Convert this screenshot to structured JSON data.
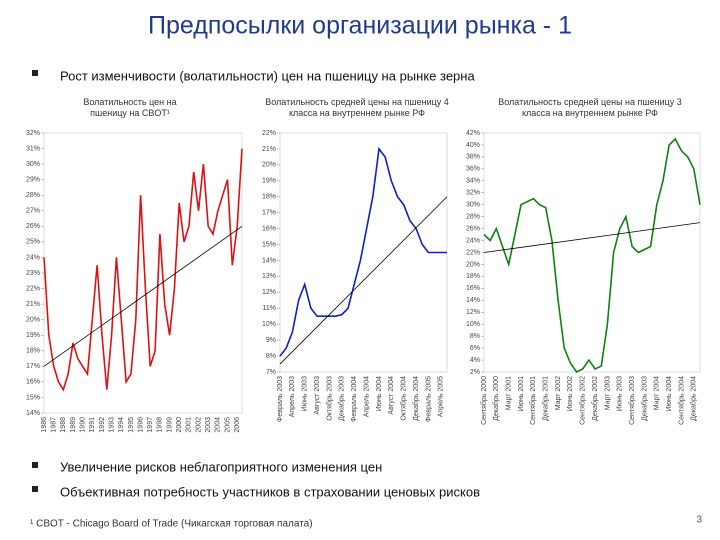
{
  "title": "Предпосылки организации рынка - 1",
  "bullets": [
    "Рост изменчивости (волатильности) цен на пшеницу на рынке зерна",
    "Увеличение рисков неблагоприятного изменения цен",
    "Объективная потребность участников в страховании ценовых рисков"
  ],
  "footnote": "¹ CBOT - Chicago Board of Trade (Чикагская торговая палата)",
  "page_number": "3",
  "chart_data": [
    {
      "type": "line",
      "title": "Волатильность цен на пшеницу на CBOT¹",
      "color": "#e01010",
      "trend": [
        17,
        26
      ],
      "trend_color": "#000000",
      "categories": [
        "1986",
        null,
        "1987",
        null,
        "1988",
        null,
        "1989",
        null,
        "1990",
        null,
        "1991",
        null,
        "1992",
        null,
        "1993",
        null,
        "1994",
        null,
        "1995",
        null,
        "1996",
        null,
        "1997",
        null,
        "1998",
        null,
        "1999",
        null,
        "2000",
        null,
        "2001",
        null,
        "2002",
        null,
        "2003",
        null,
        "2004",
        null,
        "2005",
        null,
        "2006",
        null
      ],
      "values": [
        24,
        19,
        17,
        16,
        15.5,
        16.5,
        18.5,
        17.5,
        17,
        16.5,
        20,
        23.5,
        19,
        15.5,
        19,
        24,
        20,
        16,
        16.5,
        20,
        28,
        22,
        17,
        18,
        25.5,
        21,
        19,
        22,
        27.5,
        25,
        26,
        29.5,
        27,
        30,
        26,
        25.5,
        27,
        28,
        29,
        23.5,
        26,
        31
      ],
      "ylim": [
        14,
        32
      ],
      "yticks": [
        {
          "value": 14,
          "label": "14%"
        },
        {
          "value": 15,
          "label": "15%"
        },
        {
          "value": 16,
          "label": "16%"
        },
        {
          "value": 17,
          "label": "17%"
        },
        {
          "value": 18,
          "label": "18%"
        },
        {
          "value": 19,
          "label": "19%"
        },
        {
          "value": 20,
          "label": "20%"
        },
        {
          "value": 21,
          "label": "21%"
        },
        {
          "value": 22,
          "label": "22%"
        },
        {
          "value": 23,
          "label": "23%"
        },
        {
          "value": 24,
          "label": "24%"
        },
        {
          "value": 25,
          "label": "25%"
        },
        {
          "value": 26,
          "label": "26%"
        },
        {
          "value": 27,
          "label": "27%"
        },
        {
          "value": 28,
          "label": "28%"
        },
        {
          "value": 29,
          "label": "29%"
        },
        {
          "value": 30,
          "label": "30%"
        },
        {
          "value": 31,
          "label": "31%"
        },
        {
          "value": 32,
          "label": "32%"
        }
      ]
    },
    {
      "type": "line",
      "title": "Волатильность средней цены на пшеницу 4 класса на внутреннем рынке РФ",
      "color": "#1020c0",
      "trend": [
        7.5,
        18
      ],
      "trend_color": "#000000",
      "categories": [
        "Февраль 2003",
        null,
        "Апрель 2003",
        null,
        "Июнь 2003",
        null,
        "Август 2003",
        null,
        "Октябрь 2003",
        null,
        "Декабрь 2003",
        null,
        "Февраль 2004",
        null,
        "Апрель 2004",
        null,
        "Июнь 2004",
        null,
        "Август 2004",
        null,
        "Октябрь 2004",
        null,
        "Декабрь 2004",
        null,
        "Февраль 2005",
        null,
        "Апрель 2005",
        null
      ],
      "values": [
        8,
        8.5,
        9.5,
        11.5,
        12.5,
        11,
        10.5,
        10.5,
        10.5,
        10.5,
        10.6,
        11,
        12.5,
        14,
        16,
        18,
        21,
        20.5,
        19,
        18,
        17.5,
        16.5,
        16,
        15,
        14.5,
        14.5,
        14.5,
        14.5
      ],
      "ylim": [
        7,
        22
      ],
      "yticks": [
        {
          "value": 7,
          "label": "7%"
        },
        {
          "value": 8,
          "label": "8%"
        },
        {
          "value": 9,
          "label": "9%"
        },
        {
          "value": 10,
          "label": "10%"
        },
        {
          "value": 11,
          "label": "11%"
        },
        {
          "value": 12,
          "label": "12%"
        },
        {
          "value": 13,
          "label": "13%"
        },
        {
          "value": 14,
          "label": "14%"
        },
        {
          "value": 15,
          "label": "15%"
        },
        {
          "value": 16,
          "label": "16%"
        },
        {
          "value": 17,
          "label": "17%"
        },
        {
          "value": 18,
          "label": "18%"
        },
        {
          "value": 19,
          "label": "19%"
        },
        {
          "value": 20,
          "label": "20%"
        },
        {
          "value": 21,
          "label": "21%"
        },
        {
          "value": 22,
          "label": "22%"
        }
      ]
    },
    {
      "type": "line",
      "title": "Волатильность средней цены на пшеницу 3 класса на внутреннем рынке РФ",
      "color": "#108010",
      "trend": [
        22,
        27
      ],
      "trend_color": "#000000",
      "categories": [
        "Сентябрь 2000",
        null,
        "Декабрь 2000",
        null,
        "Март 2001",
        null,
        "Июнь 2001",
        null,
        "Сентябрь 2001",
        null,
        "Декабрь 2001",
        null,
        "Март 2002",
        null,
        "Июнь 2002",
        null,
        "Сентябрь 2002",
        null,
        "Декабрь 2002",
        null,
        "Март 2003",
        null,
        "Июнь 2003",
        null,
        "Сентябрь 2003",
        null,
        "Декабрь 2003",
        null,
        "Март 2004",
        null,
        "Июнь 2004",
        null,
        "Сентябрь 2004",
        null,
        "Декабрь 2004",
        null
      ],
      "values": [
        25,
        24,
        26,
        23,
        20,
        25,
        30,
        30.5,
        31,
        30,
        29.5,
        24,
        14,
        6,
        3.5,
        2,
        2.5,
        4,
        2.5,
        3,
        10,
        22,
        26,
        28,
        23,
        22,
        22.5,
        23,
        30,
        34,
        40,
        41,
        39,
        38,
        36,
        30
      ],
      "ylim": [
        2,
        42
      ],
      "yticks": [
        {
          "value": 2,
          "label": "2%"
        },
        {
          "value": 4,
          "label": "4%"
        },
        {
          "value": 6,
          "label": "6%"
        },
        {
          "value": 8,
          "label": "8%"
        },
        {
          "value": 10,
          "label": "10%"
        },
        {
          "value": 12,
          "label": "12%"
        },
        {
          "value": 14,
          "label": "14%"
        },
        {
          "value": 16,
          "label": "16%"
        },
        {
          "value": 18,
          "label": "18%"
        },
        {
          "value": 20,
          "label": "20%"
        },
        {
          "value": 22,
          "label": "22%"
        },
        {
          "value": 24,
          "label": "24%"
        },
        {
          "value": 26,
          "label": "26%"
        },
        {
          "value": 28,
          "label": "28%"
        },
        {
          "value": 30,
          "label": "30%"
        },
        {
          "value": 32,
          "label": "32%"
        },
        {
          "value": 34,
          "label": "34%"
        },
        {
          "value": 36,
          "label": "36%"
        },
        {
          "value": 38,
          "label": "38%"
        },
        {
          "value": 40,
          "label": "40%"
        },
        {
          "value": 42,
          "label": "42%"
        }
      ]
    }
  ]
}
